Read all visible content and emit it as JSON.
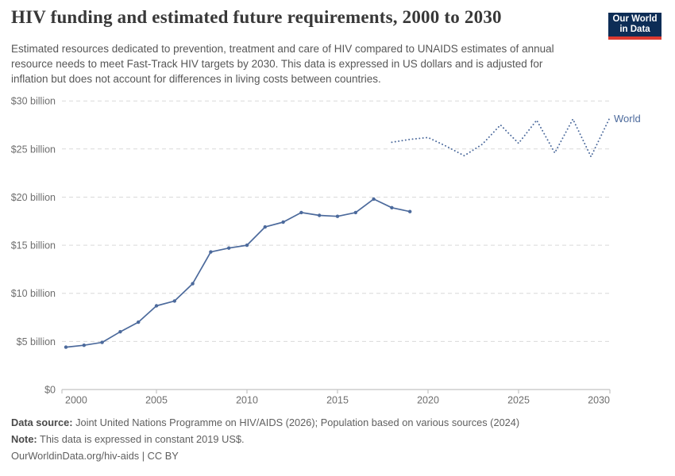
{
  "header": {
    "title": "HIV funding and estimated future requirements, 2000 to 2030",
    "subtitle": "Estimated resources dedicated to prevention, treatment and care of HIV compared to UNAIDS estimates of annual resource needs to meet Fast-Track HIV targets by 2030. This data is expressed in US dollars and is adjusted for inflation but does not account for differences in living costs between countries.",
    "logo": {
      "line1": "Our World",
      "line2": "in Data",
      "bg_color": "#0d2d56",
      "accent_color": "#dc3a31"
    }
  },
  "chart_data": {
    "type": "line",
    "title": "HIV funding and estimated future requirements, 2000 to 2030",
    "xlim": [
      2000,
      2030
    ],
    "ylim": [
      0,
      30
    ],
    "x_ticks": [
      2000,
      2005,
      2010,
      2015,
      2020,
      2025,
      2030
    ],
    "y_ticks": [
      0,
      5,
      10,
      15,
      20,
      25,
      30
    ],
    "y_tick_labels": [
      "$0",
      "$5 billion",
      "$10 billion",
      "$15 billion",
      "$20 billion",
      "$25 billion",
      "$30 billion"
    ],
    "grid": "dashed-horizontal",
    "legend_position": "end-of-line-label",
    "end_label": "World",
    "end_label_value": 28.1,
    "line_color": "#4c6a9c",
    "grid_color": "#d9d9d9",
    "axis_color": "#c3c3c3",
    "series": [
      {
        "name": "World — HIV funding (actual)",
        "style": "solid",
        "x": [
          2000,
          2001,
          2002,
          2003,
          2004,
          2005,
          2006,
          2007,
          2008,
          2009,
          2010,
          2011,
          2012,
          2013,
          2014,
          2015,
          2016,
          2017,
          2018,
          2019
        ],
        "values": [
          4.4,
          4.6,
          4.9,
          6.0,
          7.0,
          8.7,
          9.2,
          11.0,
          14.3,
          14.7,
          15.0,
          16.9,
          17.4,
          18.4,
          18.1,
          18.0,
          18.4,
          19.8,
          18.9,
          18.5
        ]
      },
      {
        "name": "World — estimated future requirements",
        "style": "dotted",
        "x": [
          2018,
          2019,
          2020,
          2021,
          2022,
          2023,
          2024,
          2025,
          2026,
          2027,
          2028,
          2029,
          2030
        ],
        "values": [
          25.7,
          26.0,
          26.2,
          25.3,
          24.3,
          25.5,
          27.5,
          25.6,
          28.0,
          24.6,
          28.1,
          24.2,
          28.1
        ]
      }
    ]
  },
  "footer": {
    "data_source_label": "Data source:",
    "data_source_text": " Joint United Nations Programme on HIV/AIDS (2026); Population based on various sources (2024)",
    "note_label": "Note:",
    "note_text": " This data is expressed in constant 2019 US$.",
    "url": "OurWorldinData.org/hiv-aids",
    "separator": " | ",
    "license": "CC BY"
  }
}
